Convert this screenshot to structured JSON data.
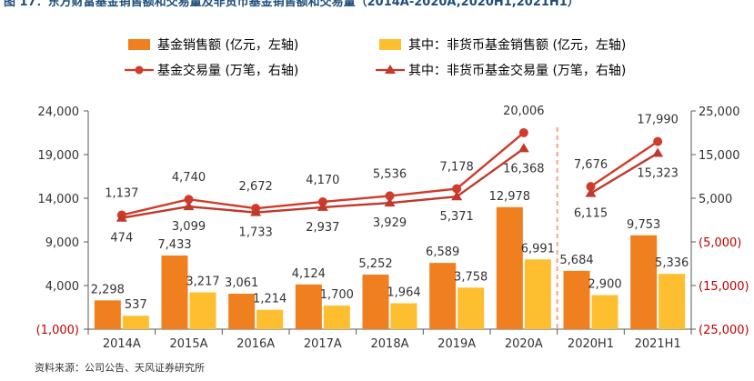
{
  "figure_caption": "图 17：东方财富基金销售额和交易量及非货币基金销售额和交易量（2014A-2020A,2020H1,2021H1）",
  "source": "资料来源：公司公告、天风证券研究所",
  "colors": {
    "bar_total": "#F07F1F",
    "bar_nonmonetary": "#FDBE2F",
    "line_total": "#D13B2B",
    "line_nonmonetary": "#C0392B",
    "axis_text": "#333333",
    "axis_right_negative": "#C00000",
    "divider": "#F4A582"
  },
  "chart_data": {
    "type": "bar",
    "categories": [
      "2014A",
      "2015A",
      "2016A",
      "2017A",
      "2018A",
      "2019A",
      "2020A",
      "2020H1",
      "2021H1"
    ],
    "series": [
      {
        "name": "基金销售额 (亿元，左轴)",
        "kind": "bar",
        "axis": "left",
        "values": [
          2298,
          7433,
          3061,
          4124,
          5252,
          6589,
          12978,
          5684,
          9753
        ],
        "labels": [
          "2,298",
          "7,433",
          "3,061",
          "4,124",
          "5,252",
          "6,589",
          "12,978",
          "5,684",
          "9,753"
        ]
      },
      {
        "name": "其中：非货币基金销售额 (亿元，左轴)",
        "kind": "bar",
        "axis": "left",
        "values": [
          537,
          3217,
          1214,
          1700,
          1964,
          3758,
          6991,
          2900,
          5336
        ],
        "labels": [
          "537",
          "3,217",
          "1,214",
          "1,700",
          "1,964",
          "3,758",
          "6,991",
          "2,900",
          "5,336"
        ]
      },
      {
        "name": "基金交易量 (万笔，右轴)",
        "kind": "line",
        "marker": "circle",
        "axis": "right",
        "values": [
          1137,
          4740,
          2672,
          4170,
          5536,
          7178,
          20006,
          7676,
          17990
        ],
        "labels": [
          "1,137",
          "4,740",
          "2,672",
          "4,170",
          "5,536",
          "7,178",
          "20,006",
          "7,676",
          "17,990"
        ]
      },
      {
        "name": "其中：非货币基金交易量 (万笔，右轴)",
        "kind": "line",
        "marker": "triangle",
        "axis": "right",
        "values": [
          474,
          3099,
          1733,
          2937,
          3929,
          5371,
          16368,
          6115,
          15323
        ],
        "labels": [
          "474",
          "3,099",
          "1,733",
          "2,937",
          "3,929",
          "5,371",
          "16,368",
          "6,115",
          "15,323"
        ]
      }
    ],
    "left_axis": {
      "ylim": [
        -1000,
        24000
      ],
      "ticks": [
        -1000,
        4000,
        9000,
        14000,
        19000,
        24000
      ],
      "tick_labels": [
        "(1,000)",
        "4,000",
        "9,000",
        "14,000",
        "19,000",
        "24,000"
      ]
    },
    "right_axis": {
      "ylim": [
        -25000,
        25000
      ],
      "ticks": [
        -25000,
        -15000,
        -5000,
        5000,
        15000,
        25000
      ],
      "tick_labels": [
        "(25,000)",
        "(15,000)",
        "(5,000)",
        "5,000",
        "15,000",
        "25,000"
      ]
    },
    "divider_between": [
      "2020A",
      "2020H1"
    ],
    "legend_position": "top",
    "grid": false
  }
}
